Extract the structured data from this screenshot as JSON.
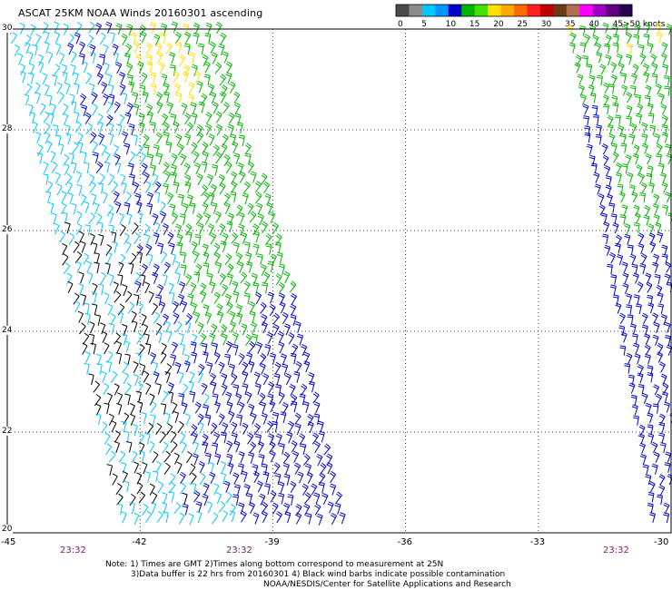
{
  "title": "ASCAT 25KM NOAA Winds 20160301 ascending",
  "legend": {
    "colors": [
      "#4a4a4a",
      "#8c8c8c",
      "#00c8ff",
      "#0096ff",
      "#0000cc",
      "#00b400",
      "#44e000",
      "#ffe000",
      "#ffa800",
      "#ff6a00",
      "#ff2020",
      "#c00000",
      "#6a3a1a",
      "#b07050",
      "#ff00ff",
      "#a000c8",
      "#600080",
      "#2a0050"
    ],
    "labels": [
      "0",
      "5",
      "10",
      "15",
      "20",
      "25",
      "30",
      "35",
      "40",
      "45",
      ">50 knots"
    ]
  },
  "y_ticks": [
    "30",
    "28",
    "26",
    "24",
    "22",
    "20"
  ],
  "x_ticks": [
    "-45",
    "-42",
    "-39",
    "-36",
    "-33",
    "-30"
  ],
  "pass_times": [
    "23:32",
    "23:32",
    "23:32"
  ],
  "notes": {
    "line1": "Note: 1) Times are GMT 2)Times along bottom correspond to measurement at 25N",
    "line2": "3)Data buffer is 22 hrs from 20160301 4) Black wind barbs indicate possible contamination",
    "line3": "NOAA/NESDIS/Center for Satellite Applications and Research"
  },
  "map": {
    "lon_range": [
      -45,
      -30
    ],
    "lat_range": [
      20,
      30
    ],
    "grid": true,
    "wind_colors": {
      "contaminated": "#000000",
      "light": "#00c8ff",
      "moderate": "#0000cc",
      "fresh": "#00b400",
      "strong": "#ffe000"
    }
  }
}
